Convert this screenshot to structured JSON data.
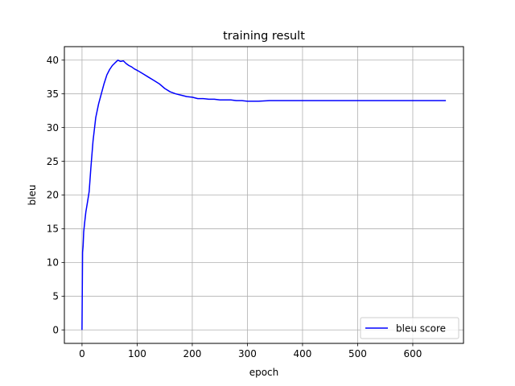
{
  "chart_data": {
    "type": "line",
    "title": "training result",
    "xlabel": "epoch",
    "ylabel": "bleu",
    "xlim": [
      -32,
      692
    ],
    "ylim": [
      -2,
      42
    ],
    "xticks": [
      0,
      100,
      200,
      300,
      400,
      500,
      600
    ],
    "yticks": [
      0,
      5,
      10,
      15,
      20,
      25,
      30,
      35,
      40
    ],
    "grid": true,
    "legend_position": "lower right",
    "series": [
      {
        "name": "bleu score",
        "color": "#0000ff",
        "x": [
          0,
          1,
          2,
          3,
          5,
          7,
          10,
          13,
          16,
          20,
          25,
          30,
          35,
          40,
          45,
          50,
          55,
          60,
          65,
          70,
          75,
          80,
          85,
          90,
          95,
          100,
          110,
          120,
          130,
          140,
          150,
          160,
          170,
          180,
          190,
          200,
          210,
          220,
          230,
          240,
          250,
          260,
          270,
          280,
          290,
          300,
          320,
          340,
          360,
          380,
          400,
          420,
          440,
          460,
          480,
          500,
          520,
          540,
          560,
          580,
          600,
          620,
          640,
          660
        ],
        "y": [
          0,
          11.5,
          12.5,
          14.5,
          16,
          17.5,
          19,
          20.5,
          24,
          28,
          31.5,
          33.5,
          35,
          36.5,
          37.8,
          38.6,
          39.2,
          39.6,
          40,
          39.8,
          39.9,
          39.5,
          39.2,
          39,
          38.7,
          38.5,
          38,
          37.5,
          37,
          36.5,
          35.8,
          35.3,
          35,
          34.8,
          34.6,
          34.5,
          34.3,
          34.3,
          34.2,
          34.2,
          34.1,
          34.1,
          34.1,
          34,
          34,
          33.9,
          33.9,
          34,
          34,
          34,
          34,
          34,
          34,
          34,
          34,
          34,
          34,
          34,
          34,
          34,
          34,
          34,
          34,
          34
        ]
      }
    ]
  }
}
